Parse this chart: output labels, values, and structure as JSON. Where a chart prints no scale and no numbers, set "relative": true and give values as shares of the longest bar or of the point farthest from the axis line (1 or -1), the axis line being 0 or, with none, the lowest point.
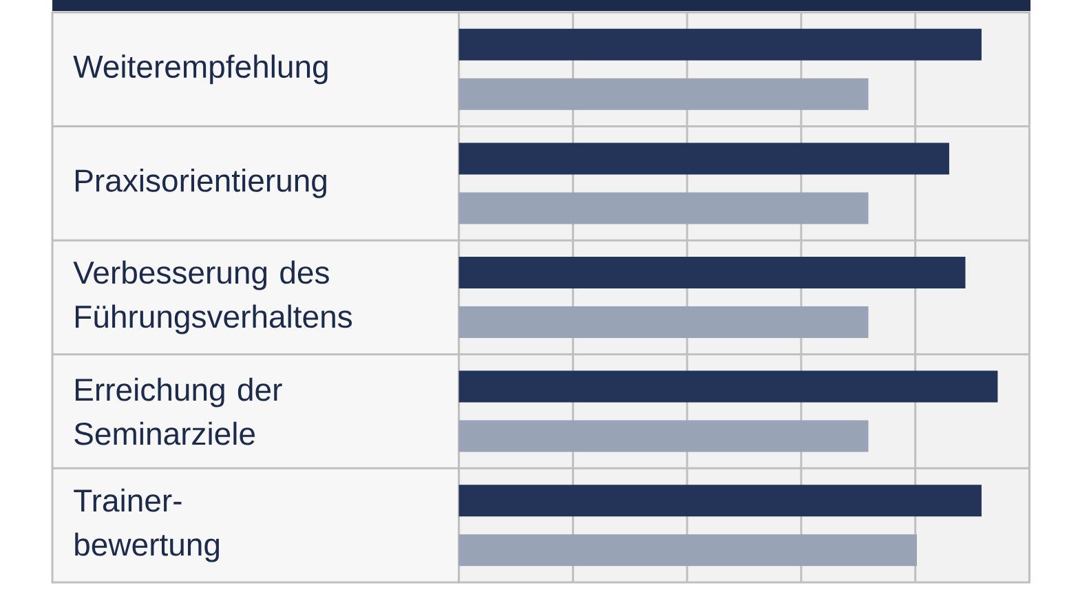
{
  "chart_data": {
    "type": "bar",
    "orientation": "horizontal",
    "relative": true,
    "categories": [
      "Weiterempfehlung",
      "Praxisorientierung",
      "Verbesserung des Führungsverhaltens",
      "Erreichung der Seminarziele",
      "Trainer-\nbewertung"
    ],
    "series": [
      {
        "color": "#243358",
        "values": [
          0.97,
          0.91,
          0.94,
          1,
          0.97
        ]
      },
      {
        "color": "#98a3b5",
        "values": [
          0.76,
          0.76,
          0.76,
          0.76,
          0.85
        ]
      }
    ],
    "grid": true
  }
}
